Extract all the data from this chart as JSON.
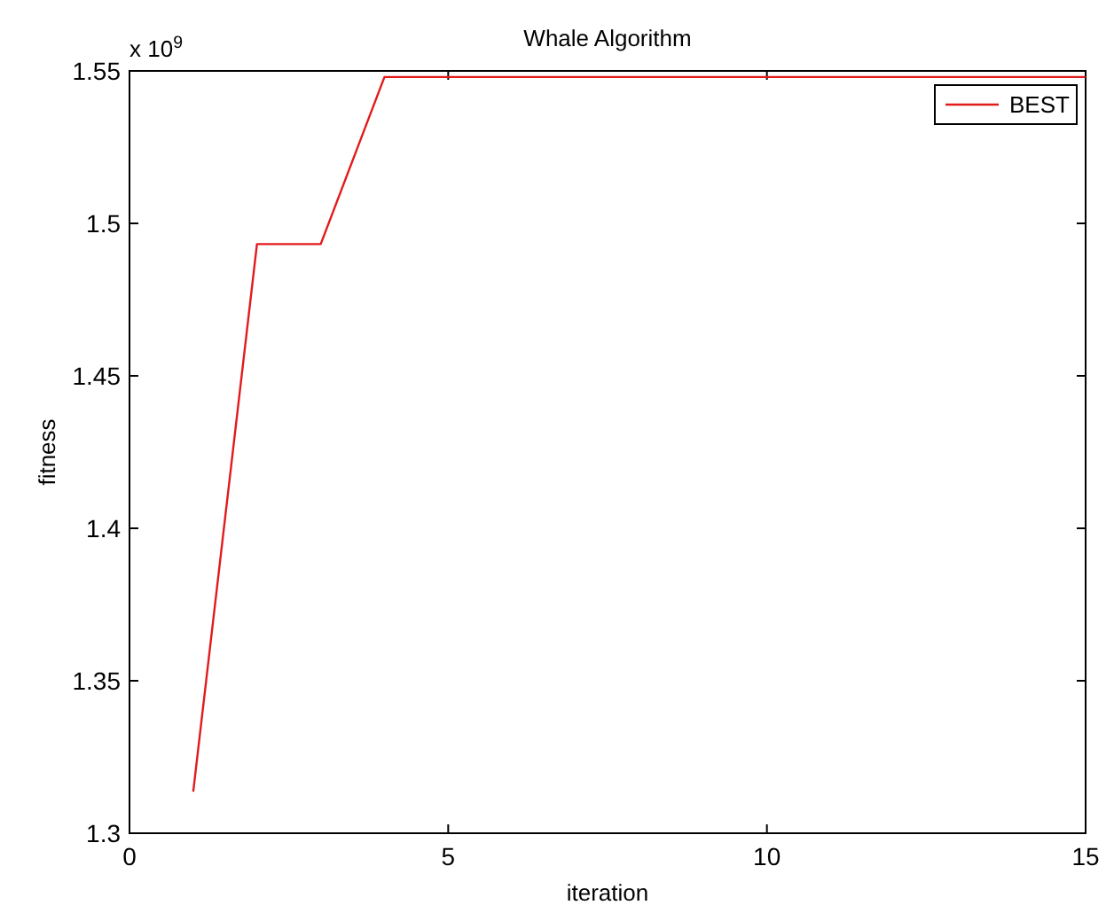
{
  "chart_data": {
    "type": "line",
    "title": "Whale Algorithm",
    "xlabel": "iteration",
    "ylabel": "fitness",
    "annotations": [
      "x 10$^{9}$"
    ],
    "x": [
      1,
      2,
      3,
      4,
      5,
      6,
      7,
      8,
      9,
      10,
      11,
      12,
      13,
      14,
      15
    ],
    "series": [
      {
        "name": "BEST",
        "color": "#e31a1c",
        "values": [
          1.3136,
          1.4932,
          1.4932,
          1.548,
          1.548,
          1.548,
          1.548,
          1.548,
          1.548,
          1.548,
          1.548,
          1.548,
          1.548,
          1.548,
          1.548
        ]
      }
    ],
    "xlim": [
      0,
      15
    ],
    "xticks": [
      0,
      5,
      10,
      15
    ],
    "ylim": [
      1.3,
      1.55
    ],
    "yticks": [
      1.3,
      1.35,
      1.4,
      1.45,
      1.5,
      1.55
    ],
    "grid": false,
    "legend": "top right",
    "marker": "none",
    "line_style": "solid"
  }
}
